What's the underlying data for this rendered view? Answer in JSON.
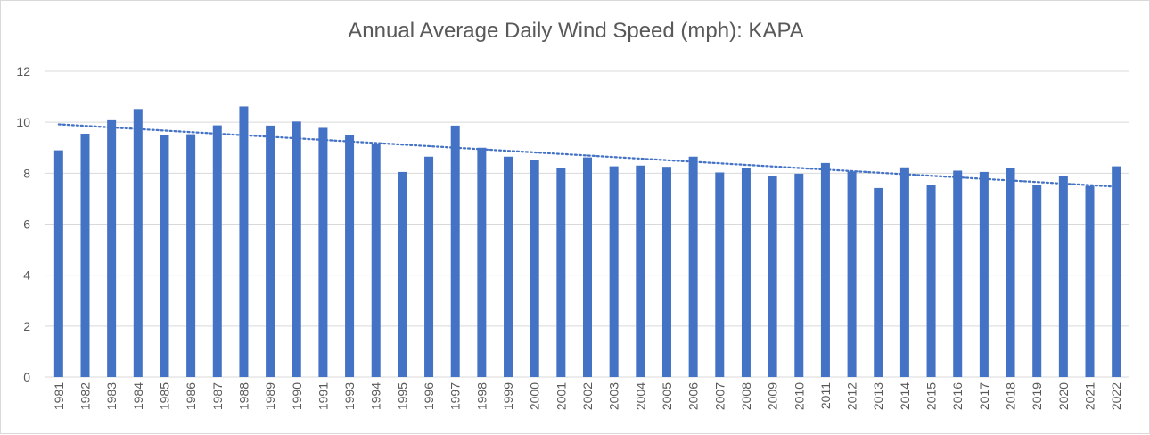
{
  "chart_data": {
    "type": "bar",
    "title": "Annual Average Daily Wind Speed (mph): KAPA",
    "xlabel": "",
    "ylabel": "",
    "ylim": [
      0,
      12
    ],
    "yticks": [
      "0",
      "2",
      "4",
      "6",
      "8",
      "10",
      "12"
    ],
    "categories": [
      "1981",
      "1982",
      "1983",
      "1984",
      "1985",
      "1986",
      "1987",
      "1988",
      "1989",
      "1990",
      "1991",
      "1993",
      "1994",
      "1995",
      "1996",
      "1997",
      "1998",
      "1999",
      "2000",
      "2001",
      "2002",
      "2003",
      "2004",
      "2005",
      "2006",
      "2007",
      "2008",
      "2009",
      "2010",
      "2011",
      "2012",
      "2013",
      "2014",
      "2015",
      "2016",
      "2017",
      "2018",
      "2019",
      "2020",
      "2021",
      "2022"
    ],
    "values": [
      8.9,
      9.55,
      10.08,
      10.52,
      9.5,
      9.53,
      9.88,
      10.62,
      9.87,
      10.03,
      9.78,
      9.5,
      9.15,
      8.05,
      8.65,
      9.87,
      9.0,
      8.65,
      8.52,
      8.2,
      8.62,
      8.27,
      8.3,
      8.25,
      8.65,
      8.03,
      8.2,
      7.88,
      7.98,
      8.4,
      8.07,
      7.42,
      8.23,
      7.53,
      8.1,
      8.05,
      8.2,
      7.55,
      7.88,
      7.5,
      8.27
    ],
    "trendline": {
      "type": "linear",
      "style": "dotted",
      "start": 9.92,
      "end": 7.47
    },
    "grid": true,
    "legend": "none",
    "colors": {
      "bar": "#4472c4",
      "trend": "#4472c4",
      "grid": "#d9d9d9",
      "text": "#595959"
    }
  }
}
